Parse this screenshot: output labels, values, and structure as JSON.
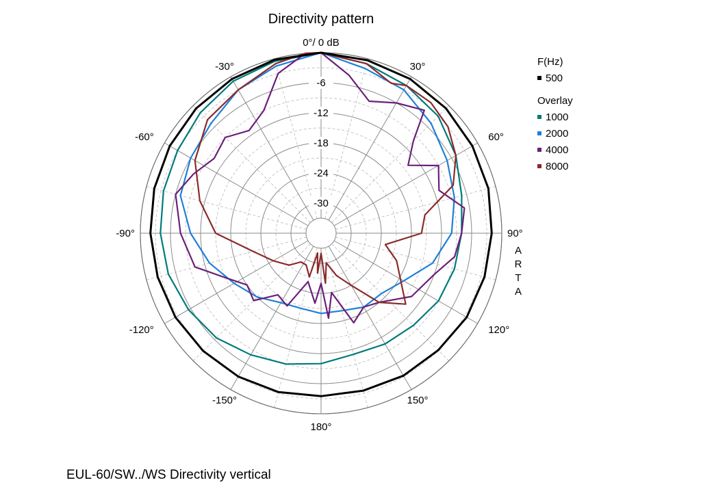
{
  "chart_data": {
    "type": "polar-line",
    "title": "Directivity pattern",
    "top_label": "0°/ 0 dB",
    "radial_unit": "dB",
    "radial_range": [
      -36,
      0
    ],
    "radial_ticks": [
      "-6",
      "-12",
      "-18",
      "-24",
      "-30"
    ],
    "angle_ticks": [
      {
        "angle": 30,
        "label": "30°"
      },
      {
        "angle": 60,
        "label": "60°"
      },
      {
        "angle": 90,
        "label": "90°"
      },
      {
        "angle": 120,
        "label": "120°"
      },
      {
        "angle": 150,
        "label": "150°"
      },
      {
        "angle": 180,
        "label": "180°"
      },
      {
        "angle": -150,
        "label": "-150°"
      },
      {
        "angle": -120,
        "label": "-120°"
      },
      {
        "angle": -90,
        "label": "-90°"
      },
      {
        "angle": -60,
        "label": "-60°"
      },
      {
        "angle": -30,
        "label": "-30°"
      }
    ],
    "watermark": "ARTA",
    "legend": {
      "header": "F(Hz)",
      "overlay_header": "Overlay",
      "position": "right"
    },
    "series": [
      {
        "name": "500",
        "color": "#000000",
        "group": "main",
        "points": [
          [
            0,
            0
          ],
          [
            15,
            -0.3
          ],
          [
            30,
            -0.5
          ],
          [
            45,
            -0.8
          ],
          [
            60,
            -1.2
          ],
          [
            75,
            -1.5
          ],
          [
            90,
            -2
          ],
          [
            105,
            -2.3
          ],
          [
            120,
            -2.5
          ],
          [
            135,
            -3
          ],
          [
            150,
            -3.2
          ],
          [
            165,
            -3.5
          ],
          [
            180,
            -3.5
          ],
          [
            -165,
            -3.2
          ],
          [
            -150,
            -3
          ],
          [
            -135,
            -2.8
          ],
          [
            -120,
            -2.5
          ],
          [
            -105,
            -2.3
          ],
          [
            -90,
            -2
          ],
          [
            -75,
            -1.6
          ],
          [
            -60,
            -1.2
          ],
          [
            -45,
            -0.8
          ],
          [
            -30,
            -0.5
          ],
          [
            -15,
            -0.2
          ]
        ]
      },
      {
        "name": "1000",
        "color": "#007a7a",
        "group": "overlay",
        "points": [
          [
            0,
            0
          ],
          [
            15,
            -1
          ],
          [
            30,
            -2
          ],
          [
            45,
            -3
          ],
          [
            60,
            -5
          ],
          [
            75,
            -7
          ],
          [
            90,
            -8
          ],
          [
            105,
            -8.5
          ],
          [
            120,
            -9
          ],
          [
            135,
            -10
          ],
          [
            150,
            -10.5
          ],
          [
            165,
            -11
          ],
          [
            180,
            -10
          ],
          [
            -165,
            -9
          ],
          [
            -150,
            -8
          ],
          [
            -135,
            -6.5
          ],
          [
            -120,
            -5.5
          ],
          [
            -105,
            -4.5
          ],
          [
            -90,
            -4
          ],
          [
            -75,
            -3.5
          ],
          [
            -60,
            -3
          ],
          [
            -45,
            -2
          ],
          [
            -30,
            -1
          ],
          [
            -15,
            -0.5
          ]
        ]
      },
      {
        "name": "2000",
        "color": "#1e7fd8",
        "group": "overlay",
        "points": [
          [
            0,
            0
          ],
          [
            15,
            -2
          ],
          [
            30,
            -3
          ],
          [
            45,
            -5
          ],
          [
            60,
            -7
          ],
          [
            75,
            -8.5
          ],
          [
            90,
            -10
          ],
          [
            105,
            -13
          ],
          [
            120,
            -17
          ],
          [
            135,
            -19
          ],
          [
            150,
            -19
          ],
          [
            165,
            -20
          ],
          [
            180,
            -20
          ],
          [
            -165,
            -20.5
          ],
          [
            -150,
            -20
          ],
          [
            -135,
            -18
          ],
          [
            -120,
            -16
          ],
          [
            -105,
            -13
          ],
          [
            -90,
            -10
          ],
          [
            -75,
            -7
          ],
          [
            -60,
            -6
          ],
          [
            -45,
            -5
          ],
          [
            -30,
            -3
          ],
          [
            -15,
            -1.5
          ]
        ]
      },
      {
        "name": "4000",
        "color": "#6a1f7a",
        "group": "overlay",
        "points": [
          [
            0,
            0
          ],
          [
            10,
            -4
          ],
          [
            20,
            -8
          ],
          [
            30,
            -6
          ],
          [
            40,
            -4
          ],
          [
            45,
            -10
          ],
          [
            52,
            -14
          ],
          [
            60,
            -9
          ],
          [
            70,
            -11
          ],
          [
            80,
            -7
          ],
          [
            90,
            -8
          ],
          [
            100,
            -9
          ],
          [
            110,
            -12
          ],
          [
            125,
            -14
          ],
          [
            140,
            -18
          ],
          [
            150,
            -19
          ],
          [
            160,
            -17
          ],
          [
            170,
            -24
          ],
          [
            175,
            -19
          ],
          [
            180,
            -26
          ],
          [
            185,
            -22
          ],
          [
            195,
            -26
          ],
          [
            205,
            -20
          ],
          [
            215,
            -21
          ],
          [
            225,
            -17
          ],
          [
            235,
            -18
          ],
          [
            245,
            -15
          ],
          [
            255,
            -10
          ],
          [
            270,
            -8
          ],
          [
            285,
            -6
          ],
          [
            295,
            -8
          ],
          [
            305,
            -10
          ],
          [
            315,
            -9
          ],
          [
            325,
            -11
          ],
          [
            335,
            -9
          ],
          [
            345,
            -3
          ],
          [
            355,
            0
          ]
        ]
      },
      {
        "name": "8000",
        "color": "#8b2a2a",
        "group": "overlay",
        "points": [
          [
            0,
            0
          ],
          [
            15,
            -1
          ],
          [
            25,
            -3
          ],
          [
            30,
            -2
          ],
          [
            40,
            -2
          ],
          [
            50,
            -3
          ],
          [
            60,
            -5
          ],
          [
            70,
            -8
          ],
          [
            80,
            -15
          ],
          [
            90,
            -16
          ],
          [
            100,
            -23
          ],
          [
            110,
            -20
          ],
          [
            130,
            -14
          ],
          [
            140,
            -18
          ],
          [
            150,
            -24
          ],
          [
            160,
            -27
          ],
          [
            170,
            -30
          ],
          [
            175,
            -26
          ],
          [
            180,
            -32
          ],
          [
            185,
            -28
          ],
          [
            190,
            -32
          ],
          [
            195,
            -27
          ],
          [
            205,
            -29
          ],
          [
            215,
            -29
          ],
          [
            225,
            -27
          ],
          [
            240,
            -25
          ],
          [
            255,
            -22
          ],
          [
            270,
            -15
          ],
          [
            285,
            -11
          ],
          [
            300,
            -7
          ],
          [
            315,
            -4
          ],
          [
            330,
            -3
          ],
          [
            345,
            -1
          ],
          [
            355,
            0
          ]
        ]
      }
    ]
  },
  "caption": "EUL-60/SW../WS Directivity vertical"
}
